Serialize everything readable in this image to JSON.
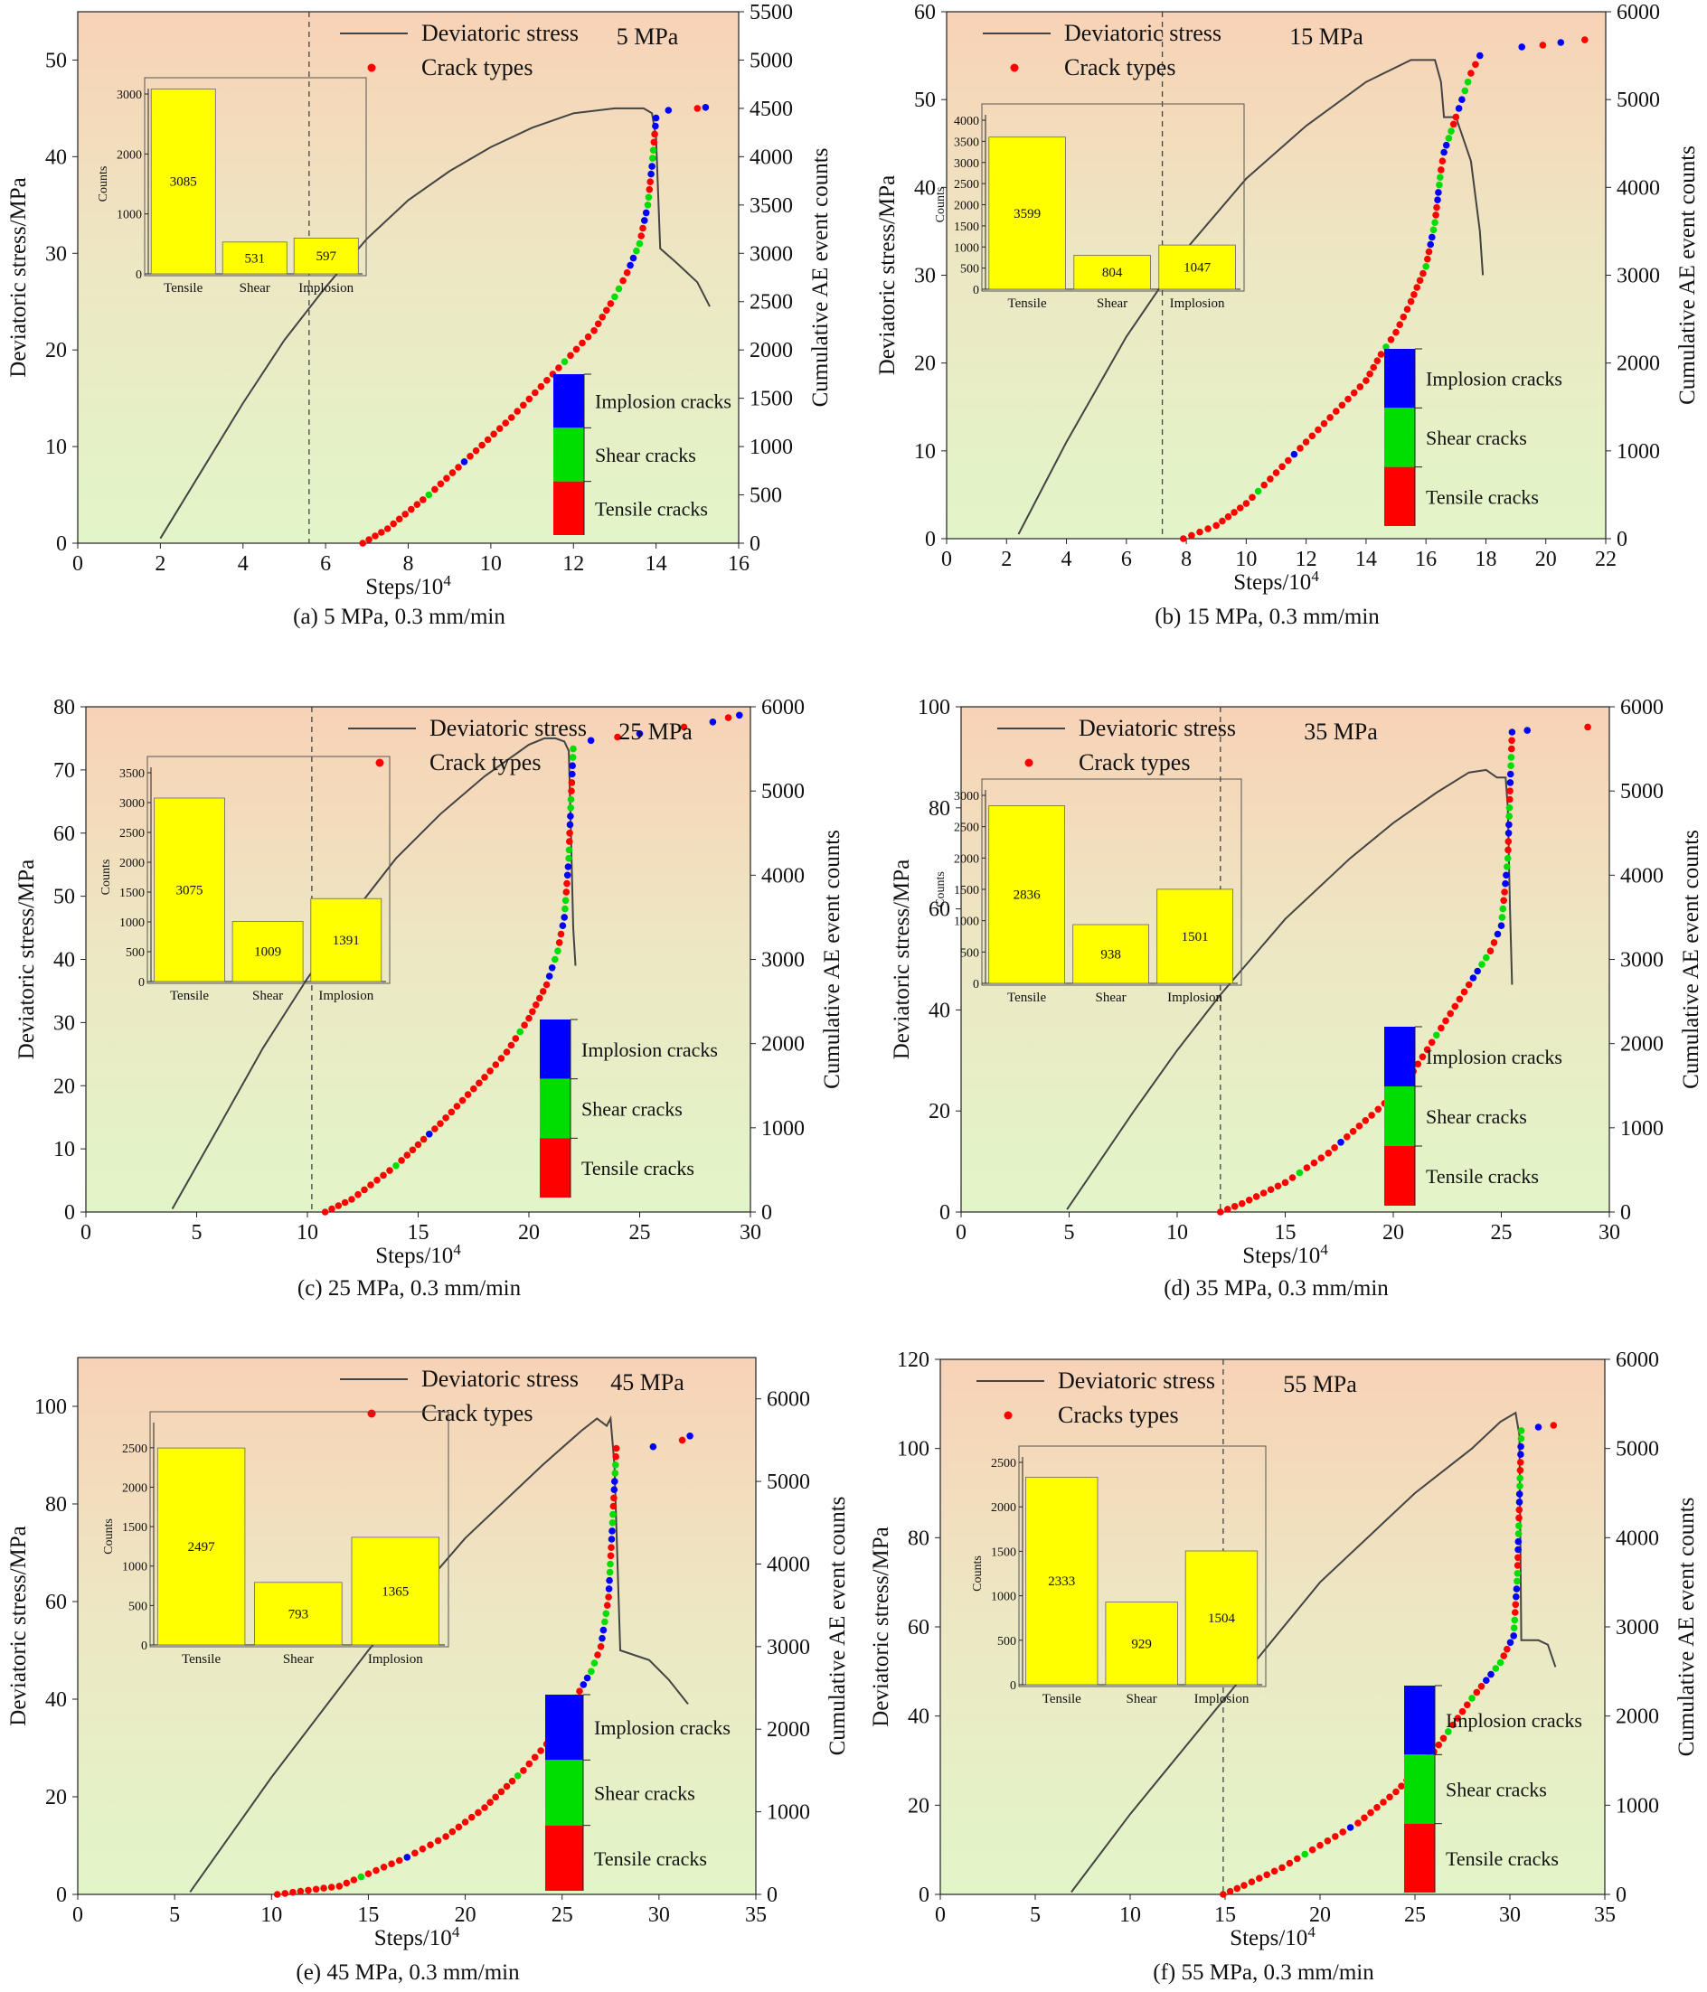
{
  "figure": {
    "caption": ""
  },
  "chart_data": [
    {
      "type": "line",
      "id": "a",
      "caption": "(a) 5 MPa, 0.3 mm/min",
      "pressure_label": "5 MPa",
      "xlabel": "Steps/10^4",
      "ylabel": "Deviatoric stress/MPa",
      "y2label": "Cumulative AE event counts",
      "xlim": [
        0,
        16
      ],
      "xticks": [
        0,
        2,
        4,
        6,
        8,
        10,
        12,
        14,
        16
      ],
      "ylim": [
        0,
        55
      ],
      "yticks": [
        0,
        10,
        20,
        30,
        40,
        50
      ],
      "y2lim": [
        0,
        5500
      ],
      "y2ticks": [
        0,
        500,
        1000,
        1500,
        2000,
        2500,
        3000,
        3500,
        4000,
        4500,
        5000,
        5500
      ],
      "vline_x": 5.6,
      "legend": [
        "Deviatoric stress",
        "Crack types"
      ],
      "crack_legend": [
        "Implosion cracks",
        "Shear cracks",
        "Tensile cracks"
      ],
      "colors": {
        "tensile": "#ff0000",
        "shear": "#00dd00",
        "implosion": "#0000ff",
        "stress": "#444444",
        "bar": "#ffff00"
      },
      "stress_curve": {
        "x": [
          2.0,
          3,
          4,
          5,
          6,
          7,
          8,
          9,
          10,
          11,
          12,
          13,
          13.7,
          13.9,
          14.0,
          14.1,
          14.5,
          15.0,
          15.3
        ],
        "y": [
          0.5,
          7.5,
          14.5,
          21,
          26.5,
          31.5,
          35.5,
          38.5,
          41,
          43,
          44.5,
          45,
          45,
          44.5,
          42,
          30.5,
          29,
          27,
          24.5
        ]
      },
      "ae_curve": {
        "x": [
          6.9,
          7.5,
          8.5,
          9.5,
          10.5,
          11.5,
          12.5,
          13.0,
          13.3,
          13.6,
          13.8,
          13.9,
          14.0
        ],
        "y": [
          0,
          150,
          500,
          900,
          1300,
          1750,
          2200,
          2550,
          2800,
          3100,
          3500,
          3900,
          4400
        ]
      },
      "ae_extra": {
        "x": [
          14.3,
          15.0,
          15.2
        ],
        "y": [
          4480,
          4500,
          4510
        ]
      },
      "bar_chart": {
        "categories": [
          "Tensile",
          "Shear",
          "Implosion"
        ],
        "values": [
          3085,
          531,
          597
        ],
        "ylim": [
          0,
          3000
        ],
        "yticks": [
          0,
          1000,
          2000,
          3000
        ],
        "ylabel": "Counts"
      }
    },
    {
      "type": "line",
      "id": "b",
      "caption": "(b) 15 MPa, 0.3 mm/min",
      "pressure_label": "15 MPa",
      "xlabel": "Steps/10^4",
      "ylabel": "Deviatoric stress/MPa",
      "y2label": "Cumulative AE event counts",
      "xlim": [
        0,
        22
      ],
      "xticks": [
        0,
        2,
        4,
        6,
        8,
        10,
        12,
        14,
        16,
        18,
        20,
        22
      ],
      "ylim": [
        0,
        60
      ],
      "yticks": [
        0,
        10,
        20,
        30,
        40,
        50,
        60
      ],
      "y2lim": [
        0,
        6000
      ],
      "y2ticks": [
        0,
        1000,
        2000,
        3000,
        4000,
        5000,
        6000
      ],
      "vline_x": 7.2,
      "legend": [
        "Deviatoric stress",
        "Crack types"
      ],
      "crack_legend": [
        "Implosion cracks",
        "Shear cracks",
        "Tensile cracks"
      ],
      "colors": {
        "tensile": "#ff0000",
        "shear": "#00dd00",
        "implosion": "#0000ff",
        "stress": "#444444",
        "bar": "#ffff00"
      },
      "stress_curve": {
        "x": [
          2.4,
          4,
          6,
          8,
          10,
          12,
          14,
          15.5,
          16.3,
          16.5,
          16.6,
          17.0,
          17.3,
          17.5,
          17.8,
          17.9
        ],
        "y": [
          0.5,
          11,
          23,
          33,
          41,
          47,
          52,
          54.5,
          54.5,
          52,
          48,
          48,
          45,
          43,
          35,
          30
        ]
      },
      "ae_curve": {
        "x": [
          7.9,
          9,
          10,
          11,
          12,
          13,
          14,
          14.5,
          15,
          15.5,
          16,
          16.3,
          16.5,
          16.6,
          17.0,
          17.3,
          17.5,
          17.8
        ],
        "y": [
          0,
          150,
          400,
          750,
          1100,
          1450,
          1800,
          2100,
          2350,
          2700,
          3100,
          3600,
          4200,
          4400,
          4800,
          5100,
          5300,
          5500
        ]
      },
      "ae_extra": {
        "x": [
          19.2,
          19.9,
          20.5,
          21.3
        ],
        "y": [
          5600,
          5620,
          5650,
          5680
        ]
      },
      "bar_chart": {
        "categories": [
          "Tensile",
          "Shear",
          "Implosion"
        ],
        "values": [
          3599,
          804,
          1047
        ],
        "ylim": [
          0,
          4000
        ],
        "yticks": [
          0,
          500,
          1000,
          1500,
          2000,
          2500,
          3000,
          3500,
          4000
        ],
        "ylabel": "Counts"
      }
    },
    {
      "type": "line",
      "id": "c",
      "caption": "(c) 25 MPa, 0.3 mm/min",
      "pressure_label": "25 MPa",
      "xlabel": "Steps/10^4",
      "ylabel": "Deviatoric stress/MPa",
      "y2label": "Cumulative AE event counts",
      "xlim": [
        0,
        30
      ],
      "xticks": [
        0,
        5,
        10,
        15,
        20,
        25,
        30
      ],
      "ylim": [
        0,
        80
      ],
      "yticks": [
        0,
        10,
        20,
        30,
        40,
        50,
        60,
        70,
        80
      ],
      "y2lim": [
        0,
        6000
      ],
      "y2ticks": [
        0,
        1000,
        2000,
        3000,
        4000,
        5000,
        6000
      ],
      "vline_x": 10.2,
      "legend": [
        "Deviatoric stress",
        "Crack types"
      ],
      "crack_legend": [
        "Implosion cracks",
        "Shear cracks",
        "Tensile cracks"
      ],
      "colors": {
        "tensile": "#ff0000",
        "shear": "#00dd00",
        "implosion": "#0000ff",
        "stress": "#444444",
        "bar": "#ffff00"
      },
      "stress_curve": {
        "x": [
          3.9,
          6,
          8,
          10,
          12,
          14,
          16,
          18,
          20,
          20.7,
          21.2,
          21.6,
          21.8,
          21.9,
          22.0,
          22.1
        ],
        "y": [
          0.5,
          13.5,
          26,
          37,
          47,
          56,
          63,
          69,
          74,
          75,
          75,
          74.5,
          73,
          60,
          45,
          39
        ]
      },
      "ae_curve": {
        "x": [
          10.8,
          12,
          14,
          16,
          18,
          19,
          20,
          20.8,
          21.3,
          21.6,
          21.8,
          21.9,
          22.0
        ],
        "y": [
          0,
          150,
          550,
          1050,
          1600,
          1900,
          2300,
          2700,
          3100,
          3500,
          4200,
          4900,
          5500
        ]
      },
      "ae_extra": {
        "x": [
          22.8,
          24.0,
          25.0,
          27.0,
          28.3,
          29.0,
          29.5
        ],
        "y": [
          5600,
          5640,
          5680,
          5760,
          5820,
          5870,
          5900
        ]
      },
      "bar_chart": {
        "categories": [
          "Tensile",
          "Shear",
          "Implosion"
        ],
        "values": [
          3075,
          1009,
          1391
        ],
        "ylim": [
          0,
          3500
        ],
        "yticks": [
          0,
          500,
          1000,
          1500,
          2000,
          2500,
          3000,
          3500
        ],
        "ylabel": "Counts"
      }
    },
    {
      "type": "line",
      "id": "d",
      "caption": "(d) 35 MPa, 0.3 mm/min",
      "pressure_label": "35 MPa",
      "xlabel": "Steps/10^4",
      "ylabel": "Deviatoric stress/MPa",
      "y2label": "Cumulative AE event counts",
      "xlim": [
        0,
        30
      ],
      "xticks": [
        0,
        5,
        10,
        15,
        20,
        25,
        30
      ],
      "ylim": [
        0,
        100
      ],
      "yticks": [
        0,
        20,
        40,
        60,
        80,
        100
      ],
      "y2lim": [
        0,
        6000
      ],
      "y2ticks": [
        0,
        1000,
        2000,
        3000,
        4000,
        5000,
        6000
      ],
      "vline_x": 12.0,
      "legend": [
        "Deviatoric stress",
        "Crack types"
      ],
      "crack_legend": [
        "Implosion cracks",
        "Shear cracks",
        "Tensile cracks"
      ],
      "colors": {
        "tensile": "#ff0000",
        "shear": "#00dd00",
        "implosion": "#0000ff",
        "stress": "#444444",
        "bar": "#ffff00"
      },
      "stress_curve": {
        "x": [
          4.9,
          8,
          10,
          12,
          15,
          18,
          20,
          22,
          23.5,
          24.3,
          24.8,
          25.2,
          25.3,
          25.4,
          25.5
        ],
        "y": [
          0.5,
          20,
          32,
          43,
          58,
          70,
          77,
          83,
          87,
          87.5,
          86,
          86,
          80,
          60,
          45
        ]
      },
      "ae_curve": {
        "x": [
          12.0,
          13,
          15,
          17,
          19,
          20.5,
          22,
          23.5,
          24.5,
          25.0,
          25.3,
          25.4,
          25.5
        ],
        "y": [
          0,
          100,
          350,
          700,
          1150,
          1500,
          2100,
          2700,
          3100,
          3400,
          4200,
          5000,
          5700
        ]
      },
      "ae_extra": {
        "x": [
          26.2,
          29.0
        ],
        "y": [
          5720,
          5760
        ]
      },
      "bar_chart": {
        "categories": [
          "Tensile",
          "Shear",
          "Implosion"
        ],
        "values": [
          2836,
          938,
          1501
        ],
        "ylim": [
          0,
          3000
        ],
        "yticks": [
          0,
          500,
          1000,
          1500,
          2000,
          2500,
          3000
        ],
        "ylabel": "Counts"
      }
    },
    {
      "type": "line",
      "id": "e",
      "caption": "(e) 45 MPa, 0.3 mm/min",
      "pressure_label": "45 MPa",
      "xlabel": "Steps/10^4",
      "ylabel": "Deviatoric stress/MPa",
      "y2label": "Cumulative AE event counts",
      "xlim": [
        0,
        35
      ],
      "xticks": [
        0,
        5,
        10,
        15,
        20,
        25,
        30,
        35
      ],
      "ylim": [
        0,
        110
      ],
      "yticks": [
        0,
        20,
        40,
        60,
        80,
        100
      ],
      "y2lim": [
        0,
        6500
      ],
      "y2ticks": [
        0,
        1000,
        2000,
        3000,
        4000,
        5000,
        6000
      ],
      "vline_x": null,
      "legend": [
        "Deviatoric stress",
        "Crack types"
      ],
      "crack_legend": [
        "Implosion cracks",
        "Shear cracks",
        "Tensile cracks"
      ],
      "colors": {
        "tensile": "#ff0000",
        "shear": "#00dd00",
        "implosion": "#0000ff",
        "stress": "#444444",
        "bar": "#ffff00"
      },
      "stress_curve": {
        "x": [
          5.8,
          10,
          15,
          20,
          24,
          26,
          26.8,
          27.3,
          27.5,
          27.7,
          28.0,
          29.5,
          30.5,
          31.5
        ],
        "y": [
          0.5,
          24,
          50,
          73,
          88,
          95,
          97.5,
          96,
          97.5,
          88,
          50,
          48,
          44,
          39
        ]
      },
      "ae_curve": {
        "x": [
          10.3,
          13.5,
          15,
          17,
          19,
          21,
          23,
          24.5,
          25.5,
          26.5,
          27.0,
          27.4,
          27.6,
          27.8
        ],
        "y": [
          0,
          100,
          250,
          450,
          700,
          1050,
          1500,
          1900,
          2300,
          2700,
          3000,
          3600,
          4500,
          5400
        ]
      },
      "ae_extra": {
        "x": [
          29.7,
          31.2,
          31.6
        ],
        "y": [
          5420,
          5500,
          5550
        ]
      },
      "bar_chart": {
        "categories": [
          "Tensile",
          "Shear",
          "Implosion"
        ],
        "values": [
          2497,
          793,
          1365
        ],
        "ylim": [
          0,
          2750
        ],
        "yticks": [
          0,
          500,
          1000,
          1500,
          2000,
          2500
        ],
        "ylabel": "Counts"
      }
    },
    {
      "type": "line",
      "id": "f",
      "caption": "(f) 55 MPa, 0.3 mm/min",
      "pressure_label": "55 MPa",
      "xlabel": "Steps/10^4",
      "ylabel": "Deviatoric stress/MPa",
      "y2label": "Cumulative AE event counts",
      "xlim": [
        0,
        35
      ],
      "xticks": [
        0,
        5,
        10,
        15,
        20,
        25,
        30,
        35
      ],
      "ylim": [
        0,
        120
      ],
      "yticks": [
        0,
        20,
        40,
        60,
        80,
        100,
        120
      ],
      "y2lim": [
        0,
        6000
      ],
      "y2ticks": [
        0,
        1000,
        2000,
        3000,
        4000,
        5000,
        6000
      ],
      "vline_x": 14.9,
      "legend": [
        "Deviatoric stress",
        "Cracks types"
      ],
      "crack_legend": [
        "Implosion cracks",
        "Shear cracks",
        "Tensile cracks"
      ],
      "colors": {
        "tensile": "#ff0000",
        "shear": "#00dd00",
        "implosion": "#0000ff",
        "stress": "#444444",
        "bar": "#ffff00"
      },
      "stress_curve": {
        "x": [
          6.9,
          10,
          15,
          20,
          25,
          28,
          29.5,
          30.3,
          30.5,
          30.6,
          31.5,
          32.0,
          32.4
        ],
        "y": [
          0.5,
          18,
          44,
          70,
          90,
          100,
          106,
          108,
          103,
          57,
          57,
          56,
          51
        ]
      },
      "ae_curve": {
        "x": [
          14.9,
          16,
          18,
          20,
          22,
          24,
          26,
          28,
          29.5,
          30.2,
          30.4,
          30.5,
          30.6
        ],
        "y": [
          0,
          100,
          300,
          550,
          800,
          1150,
          1600,
          2200,
          2600,
          2900,
          3600,
          4400,
          5200
        ]
      },
      "ae_extra": {
        "x": [
          31.5,
          32.3
        ],
        "y": [
          5240,
          5260
        ]
      },
      "bar_chart": {
        "categories": [
          "Tensile",
          "Shear",
          "Implosion"
        ],
        "values": [
          2333,
          929,
          1504
        ],
        "ylim": [
          0,
          2500
        ],
        "yticks": [
          0,
          500,
          1000,
          1500,
          2000,
          2500
        ],
        "ylabel": "Counts"
      }
    }
  ]
}
